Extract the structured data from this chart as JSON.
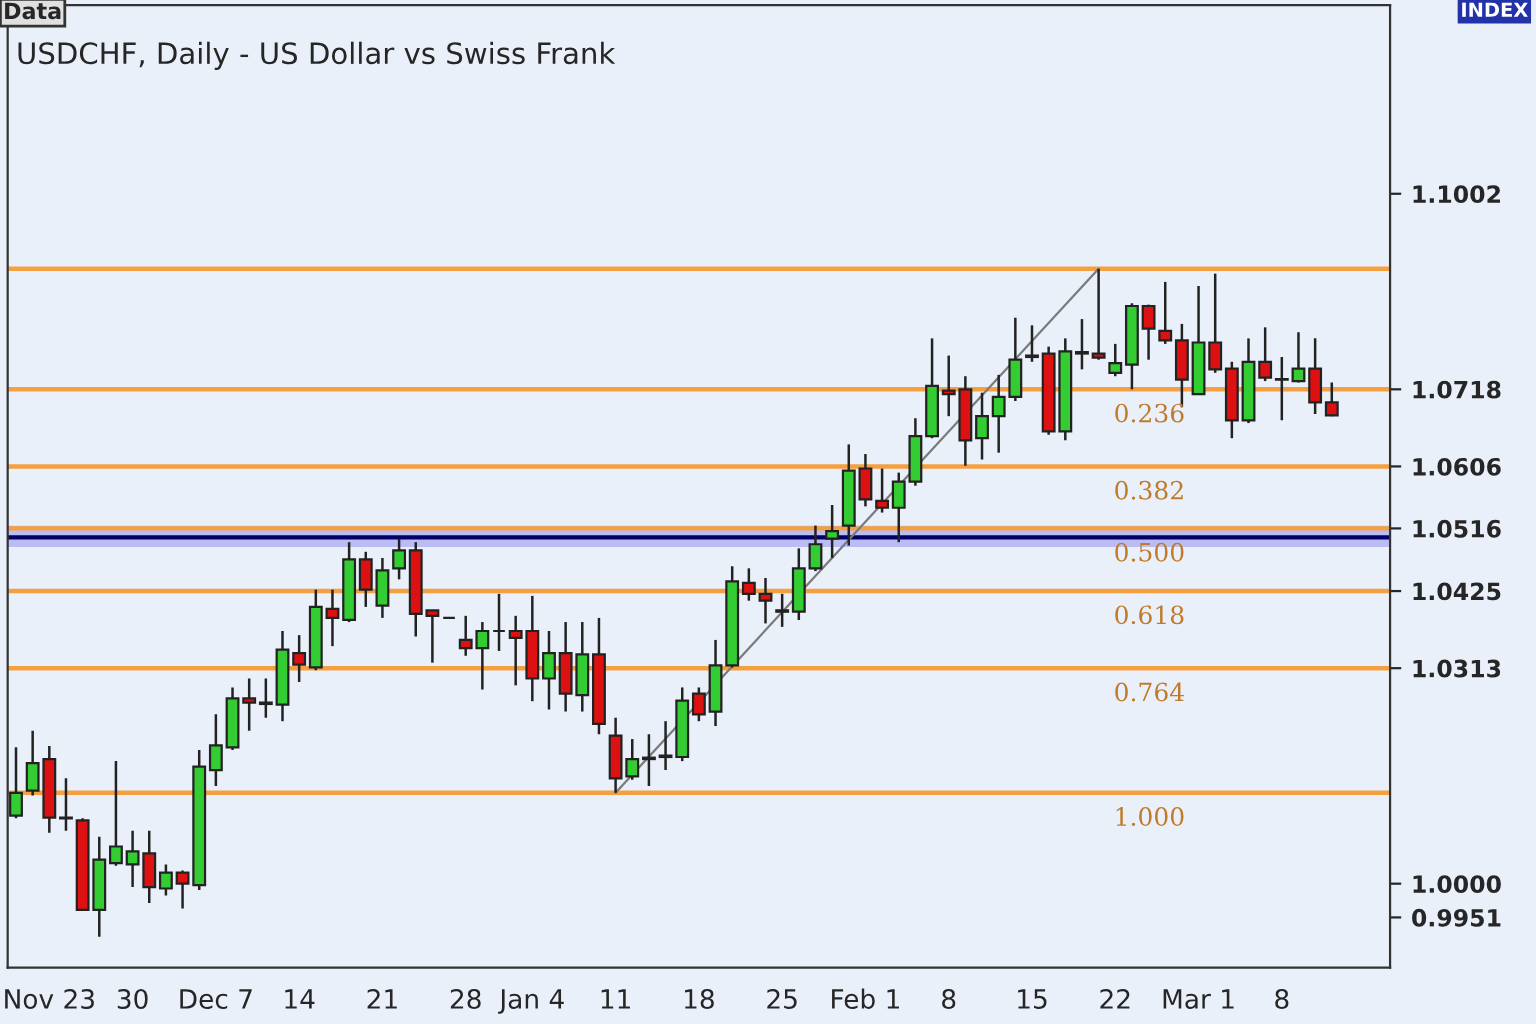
{
  "chart_data": {
    "type": "candlestick",
    "title": "USDCHF, Daily - US Dollar vs Swiss Frank",
    "annotations": [
      "Data",
      "INDEX",
      {
        "text": "0.236",
        "y": 1.0718
      },
      {
        "text": "0.382",
        "y": 1.0606
      },
      {
        "text": "0.500",
        "y": 1.0516
      },
      {
        "text": "0.618",
        "y": 1.0425
      },
      {
        "text": "0.764",
        "y": 1.0313
      },
      {
        "text": "1.000",
        "y": 1.0132
      }
    ],
    "categories": [
      null,
      null,
      "Nov 23",
      null,
      null,
      null,
      null,
      "30",
      null,
      null,
      null,
      null,
      "Dec 7",
      null,
      null,
      null,
      null,
      "14",
      null,
      null,
      null,
      null,
      "21",
      null,
      null,
      null,
      null,
      "28",
      null,
      null,
      null,
      "Jan 4",
      null,
      null,
      null,
      null,
      "11",
      null,
      null,
      null,
      null,
      "18",
      null,
      null,
      null,
      null,
      "25",
      null,
      null,
      null,
      null,
      "Feb 1",
      null,
      null,
      null,
      null,
      "8",
      null,
      null,
      null,
      null,
      "15",
      null,
      null,
      null,
      null,
      "22",
      null,
      null,
      null,
      null,
      "Mar 1",
      null,
      null,
      null,
      null,
      "8",
      null,
      null,
      null
    ],
    "ohlc": [
      [
        1.0099,
        1.0198,
        1.0095,
        1.0132
      ],
      [
        1.0135,
        1.0222,
        1.0128,
        1.0175
      ],
      [
        1.0181,
        1.02,
        1.0074,
        1.0096
      ],
      [
        1.0096,
        1.0153,
        1.0077,
        1.0095
      ],
      [
        1.0092,
        1.0095,
        0.9962,
        0.9962
      ],
      [
        0.9962,
        1.0068,
        0.9923,
        1.0035
      ],
      [
        1.003,
        1.0178,
        1.0026,
        1.0054
      ],
      [
        1.0028,
        1.0077,
        0.9995,
        1.0047
      ],
      [
        1.0044,
        1.0077,
        0.9972,
        0.9995
      ],
      [
        0.9993,
        1.0028,
        0.9983,
        1.0016
      ],
      [
        1.0016,
        1.0019,
        0.9964,
        1.0
      ],
      [
        0.9998,
        1.0194,
        0.9991,
        1.017
      ],
      [
        1.0165,
        1.0246,
        1.0142,
        1.0201
      ],
      [
        1.0198,
        1.0285,
        1.0194,
        1.0269
      ],
      [
        1.0269,
        1.0298,
        1.0222,
        1.0263
      ],
      [
        1.0263,
        1.0298,
        1.0241,
        1.0261
      ],
      [
        1.026,
        1.0367,
        1.0236,
        1.034
      ],
      [
        1.0335,
        1.0361,
        1.0293,
        1.0318
      ],
      [
        1.0314,
        1.0427,
        1.031,
        1.0402
      ],
      [
        1.0399,
        1.0427,
        1.0345,
        1.0386
      ],
      [
        1.0383,
        1.0496,
        1.038,
        1.0471
      ],
      [
        1.0471,
        1.0482,
        1.0402,
        1.0427
      ],
      [
        1.0404,
        1.0473,
        1.0386,
        1.0455
      ],
      [
        1.0458,
        1.0501,
        1.0442,
        1.0484
      ],
      [
        1.0484,
        1.0496,
        1.0359,
        1.0392
      ],
      [
        1.0397,
        1.0397,
        1.0321,
        1.0389
      ],
      [
        1.0386,
        1.0386,
        1.0386,
        1.0386
      ],
      [
        1.0354,
        1.0389,
        1.0331,
        1.0342
      ],
      [
        1.0342,
        1.038,
        1.0282,
        1.0367
      ],
      [
        1.0367,
        1.0421,
        1.0338,
        1.0367
      ],
      [
        1.0367,
        1.0389,
        1.0288,
        1.0357
      ],
      [
        1.0367,
        1.0418,
        1.0265,
        1.0298
      ],
      [
        1.0298,
        1.0367,
        1.0253,
        1.0335
      ],
      [
        1.0335,
        1.038,
        1.025,
        1.0276
      ],
      [
        1.0274,
        1.038,
        1.025,
        1.0333
      ],
      [
        1.0333,
        1.0386,
        1.0217,
        1.0232
      ],
      [
        1.0215,
        1.0241,
        1.0132,
        1.0153
      ],
      [
        1.0156,
        1.021,
        1.0151,
        1.0181
      ],
      [
        1.0181,
        1.0217,
        1.0142,
        1.0183
      ],
      [
        1.0184,
        1.0236,
        1.0165,
        1.0186
      ],
      [
        1.0184,
        1.0285,
        1.0178,
        1.0266
      ],
      [
        1.0276,
        1.0285,
        1.0236,
        1.0246
      ],
      [
        1.025,
        1.0354,
        1.0229,
        1.0317
      ],
      [
        1.0317,
        1.0461,
        1.0314,
        1.0439
      ],
      [
        1.0437,
        1.0458,
        1.0411,
        1.0421
      ],
      [
        1.0421,
        1.0444,
        1.0378,
        1.0411
      ],
      [
        1.0395,
        1.0421,
        1.0373,
        1.0397
      ],
      [
        1.0395,
        1.0487,
        1.0383,
        1.0458
      ],
      [
        1.0458,
        1.052,
        1.0454,
        1.0493
      ],
      [
        1.0501,
        1.055,
        1.0473,
        1.0512
      ],
      [
        1.052,
        1.0638,
        1.0491,
        1.06
      ],
      [
        1.0603,
        1.0624,
        1.0548,
        1.0558
      ],
      [
        1.0556,
        1.0603,
        1.0539,
        1.0546
      ],
      [
        1.0546,
        1.0597,
        1.0496,
        1.0584
      ],
      [
        1.0584,
        1.0676,
        1.0578,
        1.065
      ],
      [
        1.065,
        1.0792,
        1.0647,
        1.0723
      ],
      [
        1.0716,
        1.0767,
        1.0679,
        1.0711
      ],
      [
        1.0718,
        1.0737,
        1.0607,
        1.0644
      ],
      [
        1.0647,
        1.0713,
        1.0616,
        1.0679
      ],
      [
        1.0679,
        1.0739,
        1.0626,
        1.0707
      ],
      [
        1.0707,
        1.0822,
        1.0701,
        1.0761
      ],
      [
        1.0765,
        1.0811,
        1.0758,
        1.0767
      ],
      [
        1.077,
        1.078,
        1.0652,
        1.0657
      ],
      [
        1.0657,
        1.0792,
        1.0644,
        1.0773
      ],
      [
        1.077,
        1.082,
        1.0747,
        1.0772
      ],
      [
        1.077,
        1.0893,
        1.0761,
        1.0764
      ],
      [
        1.0742,
        1.0784,
        1.0737,
        1.0756
      ],
      [
        1.0754,
        1.0843,
        1.0718,
        1.0839
      ],
      [
        1.0839,
        1.0841,
        1.0761,
        1.0806
      ],
      [
        1.0803,
        1.0874,
        1.0784,
        1.0789
      ],
      [
        1.0789,
        1.0813,
        1.0692,
        1.0732
      ],
      [
        1.0711,
        1.0868,
        1.0711,
        1.0786
      ],
      [
        1.0786,
        1.0886,
        1.0742,
        1.0747
      ],
      [
        1.0748,
        1.0758,
        1.0647,
        1.0673
      ],
      [
        1.0673,
        1.0792,
        1.0669,
        1.0758
      ],
      [
        1.0758,
        1.0808,
        1.073,
        1.0735
      ],
      [
        1.0732,
        1.0765,
        1.0673,
        1.0733
      ],
      [
        1.073,
        1.0801,
        1.0728,
        1.0748
      ],
      [
        1.0748,
        1.0792,
        1.0682,
        1.0699
      ],
      [
        1.0699,
        1.0728,
        1.0679,
        1.068
      ]
    ],
    "colors": [
      "#33cc33",
      "#33cc33",
      "#dd1111",
      "#dd1111",
      "#dd1111",
      "#33cc33",
      "#33cc33",
      "#33cc33",
      "#dd1111",
      "#33cc33",
      "#dd1111",
      "#33cc33",
      "#33cc33",
      "#33cc33",
      "#dd1111",
      "#dd1111",
      "#33cc33",
      "#dd1111",
      "#33cc33",
      "#dd1111",
      "#33cc33",
      "#dd1111",
      "#33cc33",
      "#33cc33",
      "#dd1111",
      "#dd1111",
      "#222222",
      "#dd1111",
      "#33cc33",
      "#222222",
      "#dd1111",
      "#dd1111",
      "#33cc33",
      "#dd1111",
      "#33cc33",
      "#dd1111",
      "#dd1111",
      "#33cc33",
      "#33cc33",
      "#33cc33",
      "#33cc33",
      "#dd1111",
      "#33cc33",
      "#33cc33",
      "#dd1111",
      "#dd1111",
      "#33cc33",
      "#33cc33",
      "#33cc33",
      "#33cc33",
      "#33cc33",
      "#dd1111",
      "#dd1111",
      "#33cc33",
      "#33cc33",
      "#33cc33",
      "#dd1111",
      "#dd1111",
      "#33cc33",
      "#33cc33",
      "#33cc33",
      "#33cc33",
      "#dd1111",
      "#33cc33",
      "#33cc33",
      "#dd1111",
      "#33cc33",
      "#33cc33",
      "#dd1111",
      "#dd1111",
      "#dd1111",
      "#33cc33",
      "#dd1111",
      "#dd1111",
      "#33cc33",
      "#dd1111",
      "#33cc33",
      "#33cc33",
      "#dd1111",
      "#dd1111"
    ],
    "series": [
      {
        "type": "line",
        "color": "#7a7a7a",
        "values": [
          null,
          null,
          null,
          null,
          null,
          null,
          null,
          null,
          null,
          null,
          null,
          null,
          null,
          null,
          null,
          null,
          null,
          null,
          null,
          null,
          null,
          null,
          null,
          null,
          null,
          null,
          null,
          null,
          null,
          null,
          null,
          null,
          null,
          null,
          null,
          null,
          1.0132,
          null,
          null,
          null,
          null,
          null,
          null,
          null,
          null,
          null,
          null,
          null,
          null,
          null,
          null,
          null,
          null,
          null,
          null,
          null,
          null,
          null,
          null,
          null,
          null,
          null,
          null,
          null,
          null,
          1.0893,
          null,
          null,
          null,
          null,
          null,
          null,
          null,
          null,
          null,
          null,
          null,
          null,
          null,
          null
        ]
      }
    ],
    "ylim": [
      0.9878,
      1.1276
    ],
    "yticks": [
      0.9951,
      {
        "value": 1.0,
        "label": "1.0000"
      },
      1.0313,
      1.0425,
      1.0516,
      1.0606,
      1.0718,
      1.1002
    ],
    "ref_lines": [
      {
        "axis": "y",
        "value": 1.0893,
        "label": null,
        "color": "#f5a040"
      },
      {
        "axis": "y",
        "value": 1.0718,
        "label": null,
        "color": "#f5a040"
      },
      {
        "axis": "y",
        "value": 1.0606,
        "label": null,
        "color": "#f5a040"
      },
      {
        "axis": "y",
        "value": 1.0516,
        "label": null,
        "color": "#f5a040"
      },
      {
        "axis": "y",
        "value": 1.0425,
        "label": null,
        "color": "#f5a040"
      },
      {
        "axis": "y",
        "value": 1.0313,
        "label": null,
        "color": "#f5a040"
      },
      {
        "axis": "y",
        "value": 1.0132,
        "label": null,
        "color": "#f5a040"
      },
      {
        "axis": "y",
        "value": 1.0503,
        "label": null,
        "color": "#000066"
      }
    ],
    "bands": [
      {
        "axis": "y",
        "from": 1.0489,
        "to": 1.052,
        "label": null,
        "color": "#9999ee"
      }
    ],
    "grid": false,
    "legend": false
  }
}
